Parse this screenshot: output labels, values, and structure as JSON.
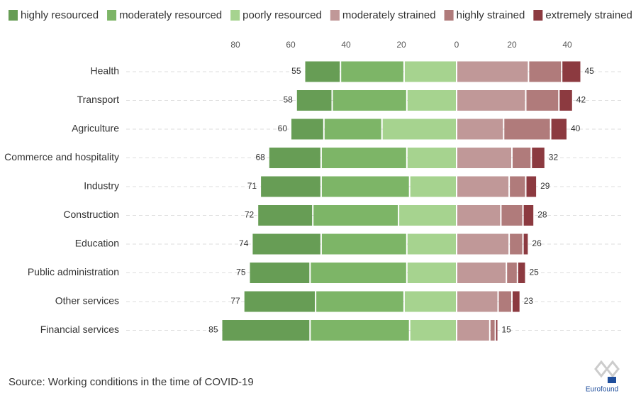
{
  "chart_data": {
    "type": "diverging-bar",
    "categories": [
      "Health",
      "Transport",
      "Agriculture",
      "Commerce and hospitality",
      "Industry",
      "Construction",
      "Education",
      "Public administration",
      "Other services",
      "Financial services"
    ],
    "series": [
      {
        "name": "highly resourced",
        "color": "#679d55",
        "values": [
          -13,
          -13,
          -12,
          -19,
          -22,
          -20,
          -25,
          -22,
          -26,
          -32
        ]
      },
      {
        "name": "moderately resourced",
        "color": "#7db567",
        "values": [
          -23,
          -27,
          -21,
          -31,
          -32,
          -31,
          -31,
          -35,
          -32,
          -36
        ]
      },
      {
        "name": "poorly resourced",
        "color": "#a6d38f",
        "values": [
          -19,
          -18,
          -27,
          -18,
          -17,
          -21,
          -18,
          -18,
          -19,
          -17
        ]
      },
      {
        "name": "moderately strained",
        "color": "#c09898",
        "values": [
          26,
          25,
          17,
          20,
          19,
          16,
          19,
          18,
          15,
          12
        ]
      },
      {
        "name": "highly strained",
        "color": "#b07b7b",
        "values": [
          12,
          12,
          17,
          7,
          6,
          8,
          5,
          4,
          5,
          2
        ]
      },
      {
        "name": "extremely strained",
        "color": "#8c3a40",
        "values": [
          7,
          5,
          6,
          5,
          4,
          4,
          2,
          3,
          3,
          1
        ]
      }
    ],
    "totals_left": {
      "values": [
        -55,
        -58,
        -60,
        -68,
        -71,
        -72,
        -74,
        -75,
        -77,
        -85
      ],
      "value_labels": [
        "55",
        "58",
        "60",
        "68",
        "71",
        "72",
        "74",
        "75",
        "77",
        "85"
      ]
    },
    "totals_right": {
      "values": [
        45,
        42,
        40,
        32,
        29,
        28,
        26,
        25,
        23,
        15
      ]
    },
    "xlim": [
      -86,
      46
    ],
    "xticks": [
      {
        "value": -80,
        "label": "80"
      },
      {
        "value": -60,
        "label": "60"
      },
      {
        "value": -40,
        "label": "40"
      },
      {
        "value": -20,
        "label": "20"
      },
      0,
      {
        "value": 20,
        "label": "20"
      },
      40
    ],
    "grid": true,
    "source": "Source: Working conditions in the time of COVID-19",
    "logo": "Eurofound"
  }
}
